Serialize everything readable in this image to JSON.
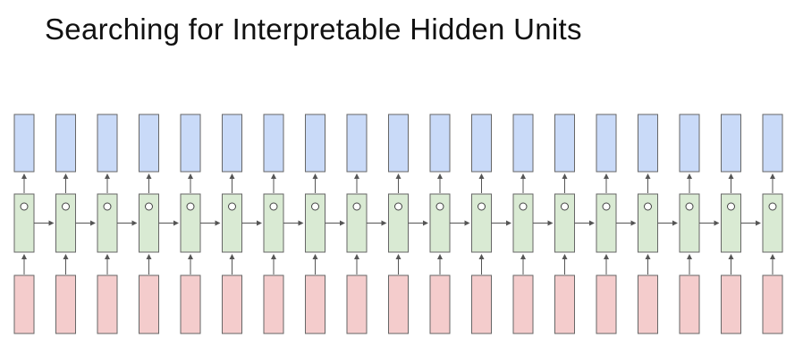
{
  "slide": {
    "title": "Searching for Interpretable Hidden Units"
  },
  "diagram": {
    "timesteps": 19,
    "colors": {
      "output_fill": "#c9daf8",
      "hidden_fill": "#d9ead3",
      "input_fill": "#f4cccc",
      "stroke": "#666666",
      "arrow": "#555555"
    },
    "hidden_unit_glyph": "circle"
  }
}
